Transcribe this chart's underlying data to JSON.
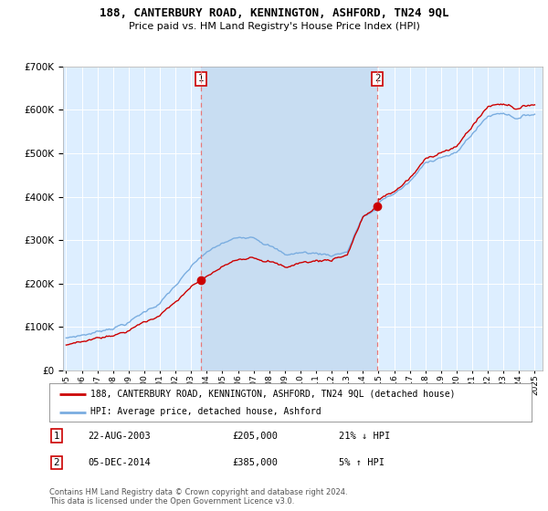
{
  "title": "188, CANTERBURY ROAD, KENNINGTON, ASHFORD, TN24 9QL",
  "subtitle": "Price paid vs. HM Land Registry's House Price Index (HPI)",
  "legend_line1": "188, CANTERBURY ROAD, KENNINGTON, ASHFORD, TN24 9QL (detached house)",
  "legend_line2": "HPI: Average price, detached house, Ashford",
  "transaction1_date": "22-AUG-2003",
  "transaction1_price": "£205,000",
  "transaction1_hpi": "21% ↓ HPI",
  "transaction2_date": "05-DEC-2014",
  "transaction2_price": "£385,000",
  "transaction2_hpi": "5% ↑ HPI",
  "footer": "Contains HM Land Registry data © Crown copyright and database right 2024.\nThis data is licensed under the Open Government Licence v3.0.",
  "hpi_color": "#7aade0",
  "price_color": "#cc0000",
  "vline_color": "#e87878",
  "plot_bg_color": "#ddeeff",
  "highlight_bg_color": "#c8ddf2",
  "ylim": [
    0,
    700000
  ],
  "yticks": [
    0,
    100000,
    200000,
    300000,
    400000,
    500000,
    600000,
    700000
  ],
  "year_start": 1995,
  "year_end": 2025,
  "transaction1_year": 2003.65,
  "transaction2_year": 2014.92,
  "transaction1_price_val": 205000,
  "transaction2_price_val": 385000
}
